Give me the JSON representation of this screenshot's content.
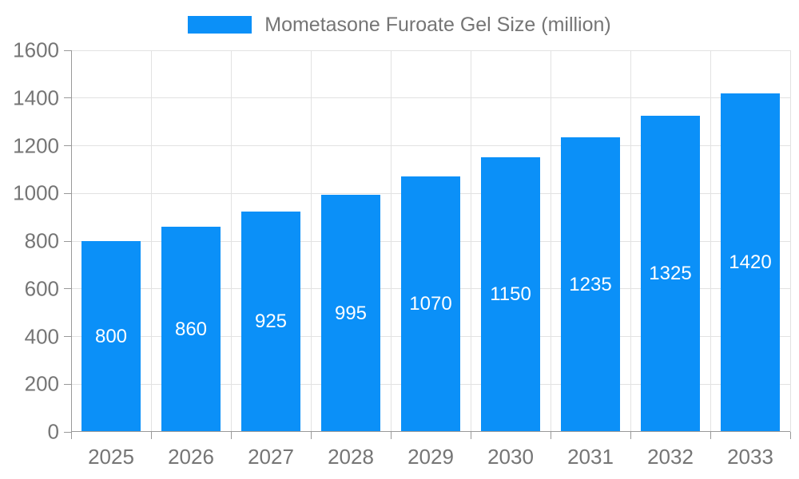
{
  "chart_data": {
    "type": "bar",
    "title": "Mometasone Furoate Gel Size (million)",
    "categories": [
      "2025",
      "2026",
      "2027",
      "2028",
      "2029",
      "2030",
      "2031",
      "2032",
      "2033"
    ],
    "values": [
      800,
      860,
      925,
      995,
      1070,
      1150,
      1235,
      1325,
      1420
    ],
    "xlabel": "",
    "ylabel": "",
    "ylim": [
      0,
      1600
    ],
    "yticks": [
      0,
      200,
      400,
      600,
      800,
      1000,
      1200,
      1400,
      1600
    ],
    "grid": true,
    "legend_position": "top",
    "bar_labels_visible": true,
    "colors": {
      "bar": "#0b90f8",
      "bar_label": "#ffffff",
      "grid": "#e2e2e2",
      "axis": "#999999",
      "tick_text": "#757575",
      "legend_text": "#757575",
      "background": "#ffffff"
    }
  }
}
